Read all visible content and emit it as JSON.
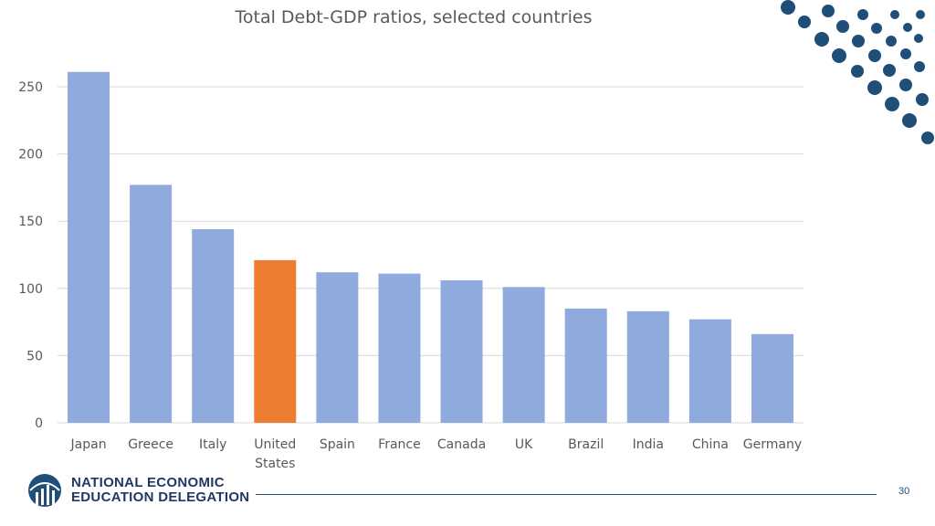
{
  "chart_data": {
    "type": "bar",
    "title": "Total Debt-GDP ratios, selected countries",
    "categories": [
      "Japan",
      "Greece",
      "Italy",
      "United States",
      "Spain",
      "France",
      "Canada",
      "UK",
      "Brazil",
      "India",
      "China",
      "Germany"
    ],
    "category_label_lines": [
      [
        "Japan"
      ],
      [
        "Greece"
      ],
      [
        "Italy"
      ],
      [
        "United",
        "States"
      ],
      [
        "Spain"
      ],
      [
        "France"
      ],
      [
        "Canada"
      ],
      [
        "UK"
      ],
      [
        "Brazil"
      ],
      [
        "India"
      ],
      [
        "China"
      ],
      [
        "Germany"
      ]
    ],
    "values": [
      261,
      177,
      144,
      121,
      112,
      111,
      106,
      101,
      85,
      83,
      77,
      66
    ],
    "ylim": [
      0,
      250
    ],
    "yticks": [
      0,
      50,
      100,
      150,
      200,
      250
    ],
    "grid": true,
    "highlight_category": "United States",
    "colors": {
      "default_bar": "#8faadc",
      "highlight_bar": "#ed7d31",
      "gridline": "#d9d9d9",
      "axis": "#d9d9d9"
    }
  },
  "footer": {
    "logo_line1": "NATIONAL ECONOMIC",
    "logo_line2": "EDUCATION DELEGATION",
    "page_number": "30",
    "accent_color": "#1f4e79"
  }
}
